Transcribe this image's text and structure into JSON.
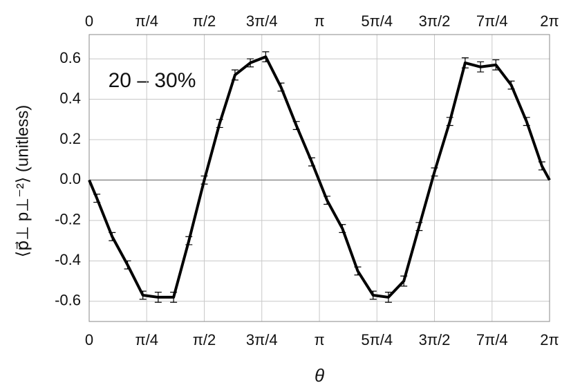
{
  "chart_data": {
    "type": "line",
    "xlabel": "θ",
    "ylabel": "⟨p⃗⊥ p⊥⁻²⟩ (unitless)",
    "annotation": "20 – 30%",
    "x": [
      0,
      0.105,
      0.314,
      0.524,
      0.733,
      0.942,
      1.152,
      1.361,
      1.571,
      1.78,
      1.99,
      2.199,
      2.409,
      2.618,
      2.827,
      3.037,
      3.246,
      3.456,
      3.665,
      3.875,
      4.084,
      4.294,
      4.503,
      4.712,
      4.922,
      5.131,
      5.341,
      5.55,
      5.76,
      5.969,
      6.178,
      6.283
    ],
    "series": [
      {
        "color": "#000000",
        "values": [
          0.0,
          -0.09,
          -0.28,
          -0.42,
          -0.57,
          -0.58,
          -0.58,
          -0.3,
          0.0,
          0.28,
          0.52,
          0.58,
          0.61,
          0.46,
          0.27,
          0.09,
          -0.1,
          -0.24,
          -0.45,
          -0.57,
          -0.58,
          -0.5,
          -0.23,
          0.04,
          0.29,
          0.58,
          0.56,
          0.57,
          0.47,
          0.29,
          0.07,
          0.0
        ],
        "errors": [
          null,
          0.02,
          0.02,
          0.02,
          0.02,
          0.025,
          0.025,
          0.02,
          0.02,
          0.02,
          0.025,
          0.02,
          0.025,
          0.02,
          0.02,
          0.02,
          0.02,
          0.02,
          0.02,
          0.02,
          0.025,
          0.025,
          0.02,
          0.02,
          0.02,
          0.025,
          0.025,
          0.025,
          0.02,
          0.02,
          0.02,
          null
        ]
      }
    ],
    "xlim": [
      0,
      6.283
    ],
    "ylim": [
      -0.7,
      0.72
    ],
    "xticks": [
      {
        "value": 0,
        "label": "0"
      },
      {
        "value": 0.785,
        "label": "π/4"
      },
      {
        "value": 1.571,
        "label": "π/2"
      },
      {
        "value": 2.356,
        "label": "3π/4"
      },
      {
        "value": 3.142,
        "label": "π"
      },
      {
        "value": 3.927,
        "label": "5π/4"
      },
      {
        "value": 4.712,
        "label": "3π/2"
      },
      {
        "value": 5.498,
        "label": "7π/4"
      },
      {
        "value": 6.283,
        "label": "2π"
      }
    ],
    "yticks": [
      -0.6,
      -0.4,
      -0.2,
      {
        "value": 0,
        "label": "0.0"
      },
      0.2,
      0.4,
      0.6
    ],
    "grid": true
  }
}
